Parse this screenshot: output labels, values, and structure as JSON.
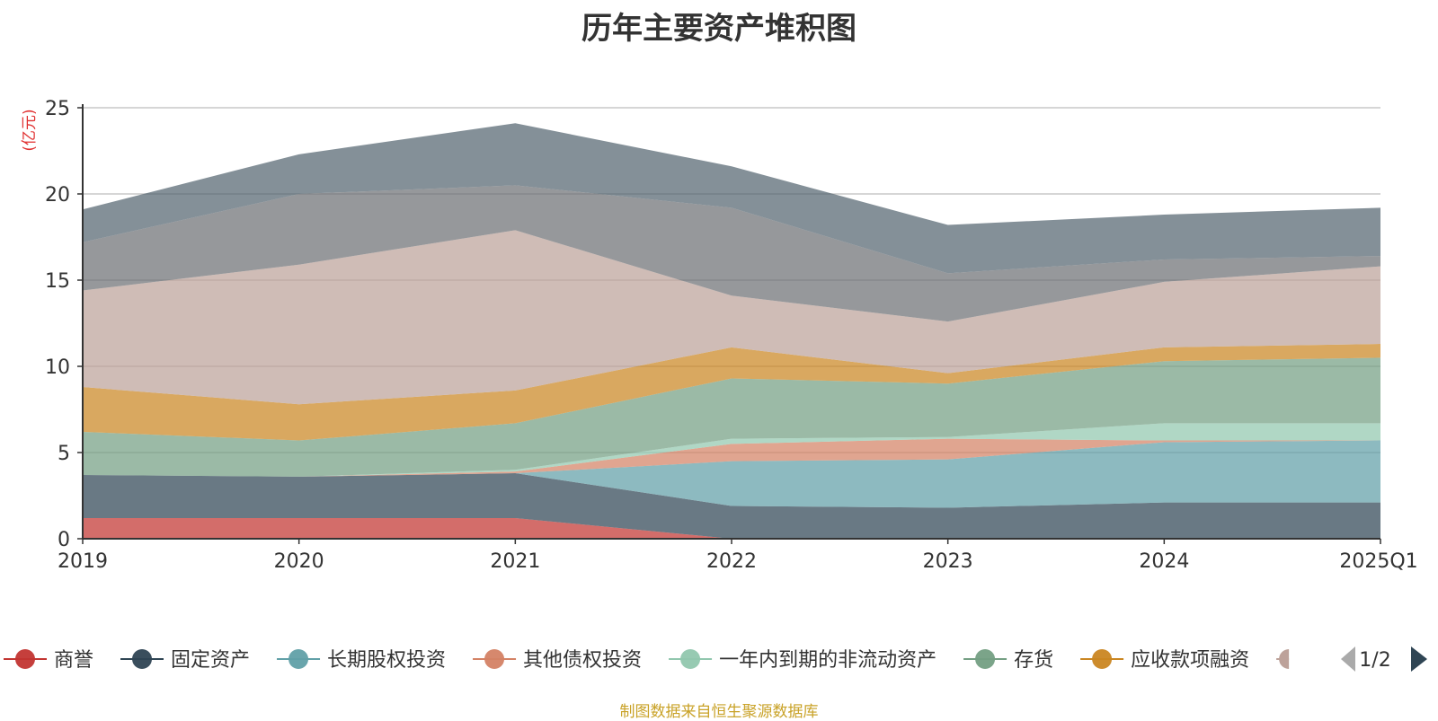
{
  "chart_data": {
    "type": "area",
    "stacked": true,
    "title": "历年主要资产堆积图",
    "ylabel": "(亿元)",
    "xlabel": "",
    "x": [
      "2019",
      "2020",
      "2021",
      "2022",
      "2023",
      "2024",
      "2025Q1"
    ],
    "ylim": [
      0,
      25
    ],
    "yticks": [
      0,
      5,
      10,
      15,
      20,
      25
    ],
    "grid": true,
    "series": [
      {
        "name": "商誉",
        "color": "#c23531",
        "values": [
          1.2,
          1.2,
          1.2,
          0.0,
          0.0,
          0.0,
          0.0
        ]
      },
      {
        "name": "固定资产",
        "color": "#2f4554",
        "values": [
          2.5,
          2.4,
          2.6,
          1.9,
          1.8,
          2.1,
          2.1
        ]
      },
      {
        "name": "长期股权投资",
        "color": "#61a0a8",
        "values": [
          0.0,
          0.0,
          0.0,
          2.6,
          2.8,
          3.5,
          3.6
        ]
      },
      {
        "name": "其他债权投资",
        "color": "#d48265",
        "values": [
          0.0,
          0.0,
          0.1,
          1.0,
          1.2,
          0.1,
          0.0
        ]
      },
      {
        "name": "一年内到期的非流动资产",
        "color": "#91c7ae",
        "values": [
          0.0,
          0.0,
          0.1,
          0.3,
          0.1,
          1.0,
          1.0
        ]
      },
      {
        "name": "存货",
        "color": "#749f83",
        "values": [
          2.5,
          2.1,
          2.7,
          3.5,
          3.1,
          3.6,
          3.8
        ]
      },
      {
        "name": "应收款项融资",
        "color": "#ca8622",
        "values": [
          2.6,
          2.1,
          1.9,
          1.8,
          0.6,
          0.8,
          0.8
        ]
      },
      {
        "name": "",
        "color": "#bda29a",
        "values": [
          5.6,
          8.1,
          9.3,
          3.0,
          3.0,
          3.8,
          4.5
        ]
      },
      {
        "name": "",
        "color": "#6e7074",
        "values": [
          2.8,
          4.1,
          2.6,
          5.1,
          2.8,
          1.3,
          0.6
        ]
      },
      {
        "name": "",
        "color": "#546570",
        "values": [
          1.9,
          2.3,
          3.6,
          2.4,
          2.8,
          2.6,
          2.8
        ]
      }
    ],
    "legend": {
      "position": "bottom",
      "page": "1/2",
      "visible_items": [
        "商誉",
        "固定资产",
        "长期股权投资",
        "其他债权投资",
        "一年内到期的非流动资产",
        "存货",
        "应收款项融资"
      ]
    }
  },
  "source_note": "制图数据来自恒生聚源数据库"
}
